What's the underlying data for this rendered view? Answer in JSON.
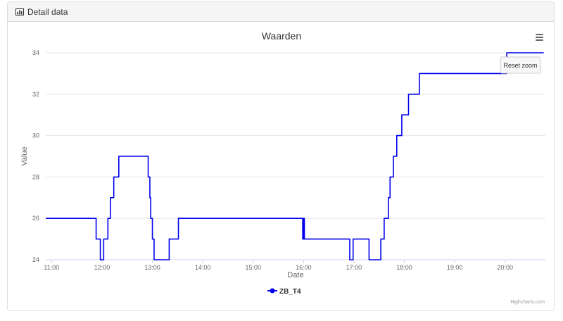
{
  "panel": {
    "title": "Detail data",
    "icon": "bar-chart-icon"
  },
  "menu": {
    "icon": "hamburger-menu-icon"
  },
  "reset_zoom_label": "Reset zoom",
  "credits": "Highcharts.com",
  "colors": {
    "series": "#0000ee",
    "grid": "#e6e6e6",
    "axis_text": "#666666",
    "title": "#333333",
    "panel_bg": "#f5f5f5"
  },
  "chart_data": {
    "type": "line",
    "step": true,
    "title": "Waarden",
    "xlabel": "Date",
    "ylabel": "Value",
    "ylim": [
      24,
      34
    ],
    "yticks": [
      "24",
      "26",
      "28",
      "30",
      "32",
      "34"
    ],
    "xticks": [
      "11:00",
      "12:00",
      "13:00",
      "14:00",
      "15:00",
      "16:00",
      "17:00",
      "18:00",
      "19:00",
      "20:00"
    ],
    "xlim": [
      "10:53",
      "20:48"
    ],
    "grid": true,
    "legend_position": "bottom-center",
    "series": [
      {
        "name": "ZB_T4",
        "x": [
          "10:53",
          "11:53",
          "11:58",
          "12:02",
          "12:07",
          "12:10",
          "12:14",
          "12:20",
          "12:33",
          "12:55",
          "12:57",
          "12:58",
          "13:00",
          "13:02",
          "13:20",
          "13:31",
          "15:59",
          "16:00",
          "16:01",
          "16:02",
          "16:55",
          "16:59",
          "17:18",
          "17:32",
          "17:36",
          "17:41",
          "17:43",
          "17:47",
          "17:51",
          "17:57",
          "18:05",
          "18:18",
          "18:32",
          "18:57",
          "19:57",
          "20:02",
          "20:46"
        ],
        "values": [
          26,
          25,
          24,
          25,
          26,
          27,
          28,
          29,
          29,
          28,
          27,
          26,
          25,
          24,
          25,
          26,
          25,
          26,
          25,
          25,
          24,
          25,
          24,
          25,
          26,
          27,
          28,
          29,
          30,
          31,
          32,
          33,
          33,
          33,
          33,
          34,
          34
        ]
      }
    ]
  }
}
